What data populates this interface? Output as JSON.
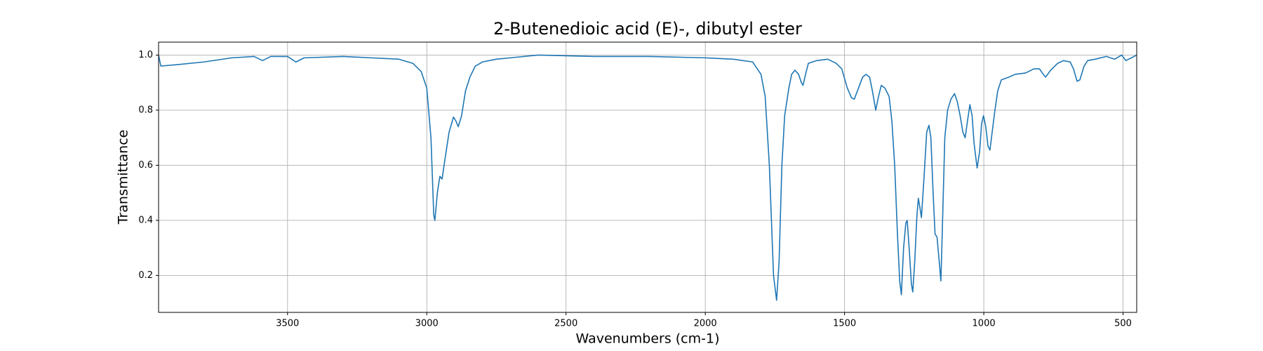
{
  "chart_data": {
    "type": "line",
    "title": "2-Butenedioic acid (E)-, dibutyl ester",
    "xlabel": "Wavenumbers (cm-1)",
    "ylabel": "Transmittance",
    "color": "#1f77b4",
    "grid": true,
    "xlim": [
      3963,
      451
    ],
    "ylim": [
      0.066,
      1.047
    ],
    "xticks": [
      3500,
      3000,
      2500,
      2000,
      1500,
      1000,
      500
    ],
    "yticks": [
      0.2,
      0.4,
      0.6,
      0.8,
      {
        "value": 1,
        "label": "1.0"
      }
    ],
    "x": [
      3963,
      3955,
      3900,
      3800,
      3700,
      3620,
      3590,
      3560,
      3500,
      3470,
      3440,
      3300,
      3200,
      3100,
      3050,
      3020,
      3000,
      2985,
      2975,
      2971,
      2962,
      2953,
      2945,
      2935,
      2920,
      2904,
      2895,
      2887,
      2875,
      2861,
      2845,
      2826,
      2800,
      2750,
      2700,
      2600,
      2400,
      2200,
      2000,
      1900,
      1830,
      1800,
      1785,
      1770,
      1755,
      1744,
      1735,
      1725,
      1715,
      1700,
      1690,
      1678,
      1665,
      1655,
      1649,
      1640,
      1630,
      1600,
      1560,
      1530,
      1510,
      1490,
      1475,
      1465,
      1450,
      1435,
      1423,
      1410,
      1400,
      1388,
      1378,
      1368,
      1355,
      1340,
      1330,
      1320,
      1310,
      1302,
      1296,
      1288,
      1280,
      1275,
      1268,
      1260,
      1255,
      1248,
      1240,
      1235,
      1230,
      1224,
      1215,
      1205,
      1197,
      1190,
      1182,
      1175,
      1168,
      1160,
      1154,
      1148,
      1140,
      1130,
      1118,
      1105,
      1095,
      1085,
      1075,
      1067,
      1060,
      1050,
      1042,
      1035,
      1024,
      1015,
      1008,
      1001,
      993,
      985,
      978,
      970,
      960,
      950,
      937,
      910,
      888,
      850,
      820,
      800,
      790,
      778,
      760,
      735,
      714,
      690,
      678,
      665,
      655,
      640,
      627,
      600,
      560,
      530,
      505,
      490,
      470,
      451
    ],
    "values": [
      1.0,
      0.96,
      0.965,
      0.975,
      0.99,
      0.995,
      0.98,
      0.995,
      0.995,
      0.975,
      0.99,
      0.995,
      0.99,
      0.985,
      0.97,
      0.94,
      0.88,
      0.7,
      0.42,
      0.4,
      0.5,
      0.56,
      0.55,
      0.62,
      0.72,
      0.775,
      0.76,
      0.74,
      0.78,
      0.87,
      0.92,
      0.96,
      0.975,
      0.985,
      0.99,
      1.0,
      0.995,
      0.995,
      0.99,
      0.985,
      0.975,
      0.93,
      0.85,
      0.6,
      0.2,
      0.11,
      0.25,
      0.6,
      0.78,
      0.88,
      0.93,
      0.945,
      0.93,
      0.9,
      0.89,
      0.93,
      0.97,
      0.98,
      0.985,
      0.97,
      0.95,
      0.88,
      0.845,
      0.84,
      0.88,
      0.92,
      0.93,
      0.92,
      0.87,
      0.8,
      0.85,
      0.89,
      0.88,
      0.85,
      0.76,
      0.6,
      0.35,
      0.18,
      0.13,
      0.3,
      0.39,
      0.4,
      0.3,
      0.17,
      0.14,
      0.25,
      0.42,
      0.48,
      0.45,
      0.41,
      0.55,
      0.72,
      0.745,
      0.7,
      0.5,
      0.35,
      0.34,
      0.25,
      0.18,
      0.4,
      0.7,
      0.8,
      0.84,
      0.86,
      0.83,
      0.78,
      0.72,
      0.7,
      0.75,
      0.82,
      0.78,
      0.68,
      0.59,
      0.65,
      0.75,
      0.78,
      0.74,
      0.67,
      0.655,
      0.72,
      0.8,
      0.87,
      0.91,
      0.92,
      0.93,
      0.935,
      0.95,
      0.95,
      0.935,
      0.92,
      0.945,
      0.97,
      0.98,
      0.975,
      0.95,
      0.905,
      0.91,
      0.96,
      0.98,
      0.985,
      0.995,
      0.985,
      1.0,
      0.98,
      0.99,
      1.0
    ]
  }
}
